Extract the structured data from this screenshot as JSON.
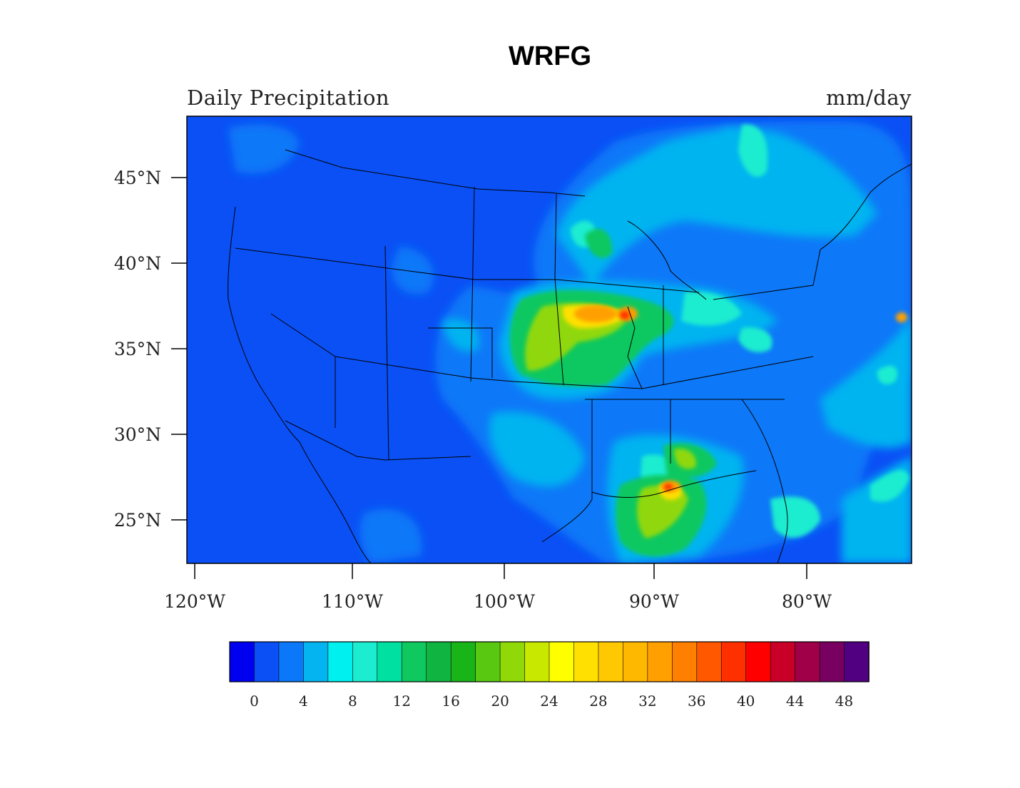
{
  "title": "WRFG",
  "subtitle_left": "Daily Precipitation",
  "subtitle_right": "mm/day",
  "map": {
    "type": "filled-contour",
    "region": "Contiguous United States",
    "lon_range": [
      -120.5,
      -73.5
    ],
    "lat_range": [
      22.5,
      48.5
    ],
    "lat_ticks": [
      "45°N",
      "40°N",
      "35°N",
      "30°N",
      "25°N"
    ],
    "lon_ticks": [
      "120°W",
      "110°W",
      "100°W",
      "90°W",
      "80°W"
    ],
    "ocean_color": "#0a50f5"
  },
  "colorbar": {
    "levels": [
      -2,
      0,
      2,
      4,
      6,
      8,
      10,
      12,
      14,
      16,
      18,
      20,
      22,
      24,
      26,
      28,
      30,
      32,
      34,
      36,
      38,
      40,
      42,
      44,
      46,
      48,
      50
    ],
    "labels": [
      "0",
      "4",
      "8",
      "12",
      "16",
      "20",
      "24",
      "28",
      "32",
      "36",
      "40",
      "44",
      "48"
    ],
    "colors": [
      "#0000f0",
      "#0a50f5",
      "#0a78f8",
      "#04b4f0",
      "#00f0f0",
      "#1cecd0",
      "#00e0a0",
      "#10c860",
      "#10b440",
      "#18b418",
      "#58c810",
      "#90d808",
      "#c8e800",
      "#ffff00",
      "#ffe000",
      "#ffc800",
      "#ffb800",
      "#ffa000",
      "#ff8000",
      "#ff5800",
      "#ff3000",
      "#ff0000",
      "#c80028",
      "#a00048",
      "#780060",
      "#500080"
    ]
  }
}
